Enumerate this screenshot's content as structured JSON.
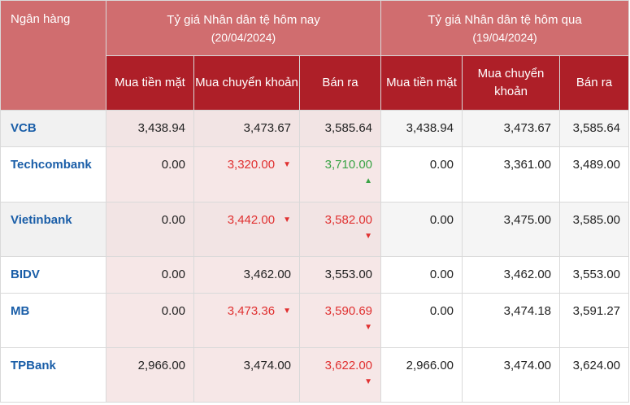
{
  "header": {
    "bank_col": "Ngân hàng",
    "today_title": "Tỷ giá Nhân dân tệ hôm nay",
    "today_date": "(20/04/2024)",
    "yesterday_title": "Tỷ giá Nhân dân tệ hôm qua",
    "yesterday_date": "(19/04/2024)",
    "sub": [
      "Mua tiền mặt",
      "Mua chuyển khoản",
      "Bán ra",
      "Mua tiền mặt",
      "Mua chuyển khoản",
      "Bán ra"
    ]
  },
  "icons": {
    "down": "▼",
    "up": "▲"
  },
  "colors": {
    "header_light": "#d06d6f",
    "header_dark": "#ae1f28",
    "down": "#e03030",
    "up": "#3aa345",
    "bank_name": "#1a5ea8"
  },
  "rows": [
    {
      "bank": "VCB",
      "today": [
        "3,438.94",
        "3,473.67",
        "3,585.64"
      ],
      "yesterday": [
        "3,438.94",
        "3,473.67",
        "3,585.64"
      ]
    },
    {
      "bank": "Techcombank",
      "today": [
        "0.00",
        "3,320.00",
        "3,710.00"
      ],
      "yesterday": [
        "0.00",
        "3,361.00",
        "3,489.00"
      ]
    },
    {
      "bank": "Vietinbank",
      "today": [
        "0.00",
        "3,442.00",
        "3,582.00"
      ],
      "yesterday": [
        "0.00",
        "3,475.00",
        "3,585.00"
      ]
    },
    {
      "bank": "BIDV",
      "today": [
        "0.00",
        "3,462.00",
        "3,553.00"
      ],
      "yesterday": [
        "0.00",
        "3,462.00",
        "3,553.00"
      ]
    },
    {
      "bank": "MB",
      "today": [
        "0.00",
        "3,473.36",
        "3,590.69"
      ],
      "yesterday": [
        "0.00",
        "3,474.18",
        "3,591.27"
      ]
    },
    {
      "bank": "TPBank",
      "today": [
        "2,966.00",
        "3,474.00",
        "3,622.00"
      ],
      "yesterday": [
        "2,966.00",
        "3,474.00",
        "3,624.00"
      ]
    }
  ]
}
